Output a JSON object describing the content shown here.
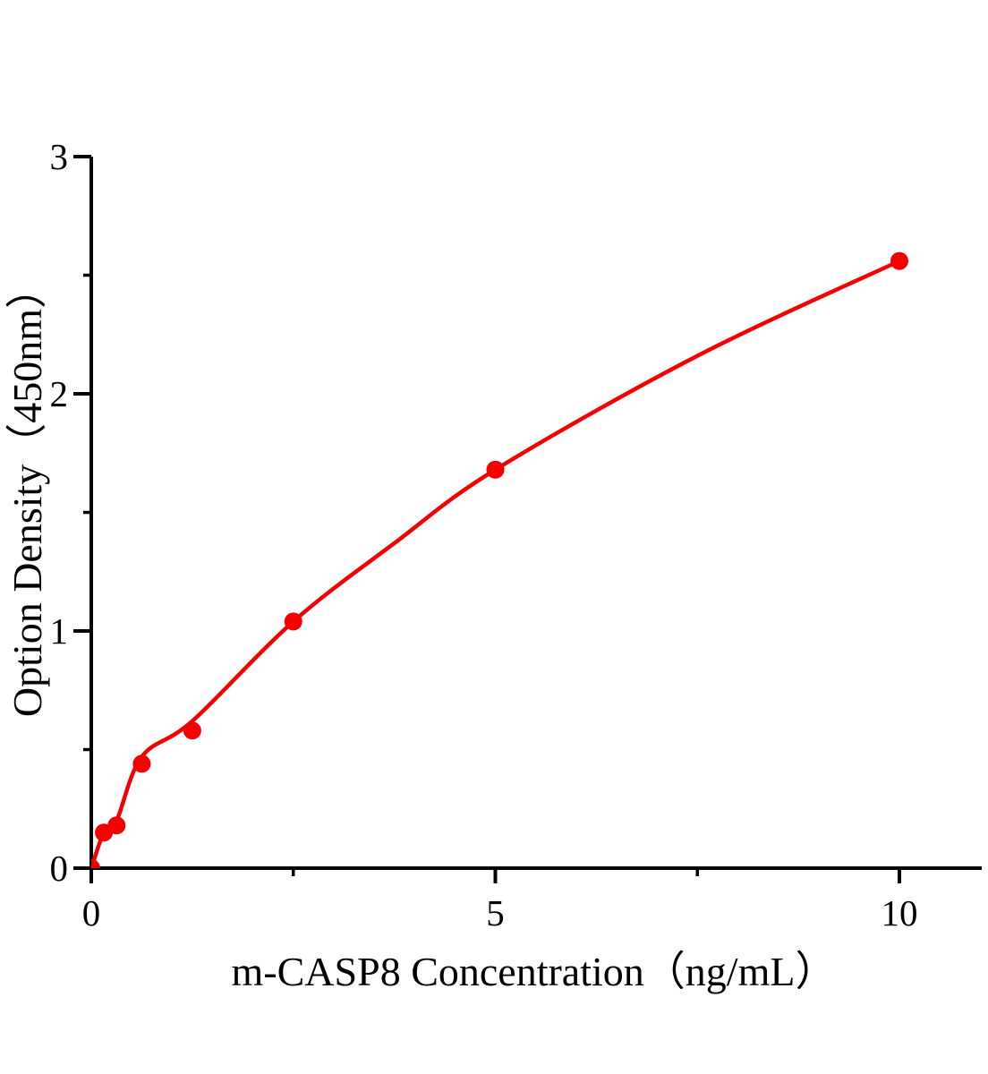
{
  "chart_data": {
    "type": "scatter",
    "title": "",
    "xlabel": "m-CASP8 Concentration（ng/mL）",
    "ylabel": "Option Density（450nm）",
    "xlim": [
      0,
      11
    ],
    "ylim": [
      0,
      3
    ],
    "x_major_ticks": [
      0,
      5,
      10
    ],
    "x_minor_ticks": [
      2.5,
      7.5
    ],
    "y_major_ticks": [
      0,
      1,
      2,
      3
    ],
    "y_minor_ticks": [
      0.5,
      1.5,
      2.5
    ],
    "grid": false,
    "legend": "none",
    "points": [
      {
        "x": 0,
        "y": 0
      },
      {
        "x": 0.156,
        "y": 0.15
      },
      {
        "x": 0.313,
        "y": 0.18
      },
      {
        "x": 0.625,
        "y": 0.44
      },
      {
        "x": 1.25,
        "y": 0.58
      },
      {
        "x": 2.5,
        "y": 1.04
      },
      {
        "x": 5,
        "y": 1.68
      },
      {
        "x": 10,
        "y": 2.56
      }
    ],
    "trend_line": [
      {
        "x": 0,
        "y": 0
      },
      {
        "x": 0.156,
        "y": 0.15
      },
      {
        "x": 0.313,
        "y": 0.2
      },
      {
        "x": 0.625,
        "y": 0.47
      },
      {
        "x": 1.25,
        "y": 0.62
      },
      {
        "x": 2.5,
        "y": 1.04
      },
      {
        "x": 3.75,
        "y": 1.37
      },
      {
        "x": 5,
        "y": 1.68
      },
      {
        "x": 7.5,
        "y": 2.16
      },
      {
        "x": 10,
        "y": 2.56
      }
    ],
    "colors": {
      "marker": "#f40000",
      "line": "#f40000",
      "axis": "#000000",
      "background": "#ffffff"
    }
  }
}
